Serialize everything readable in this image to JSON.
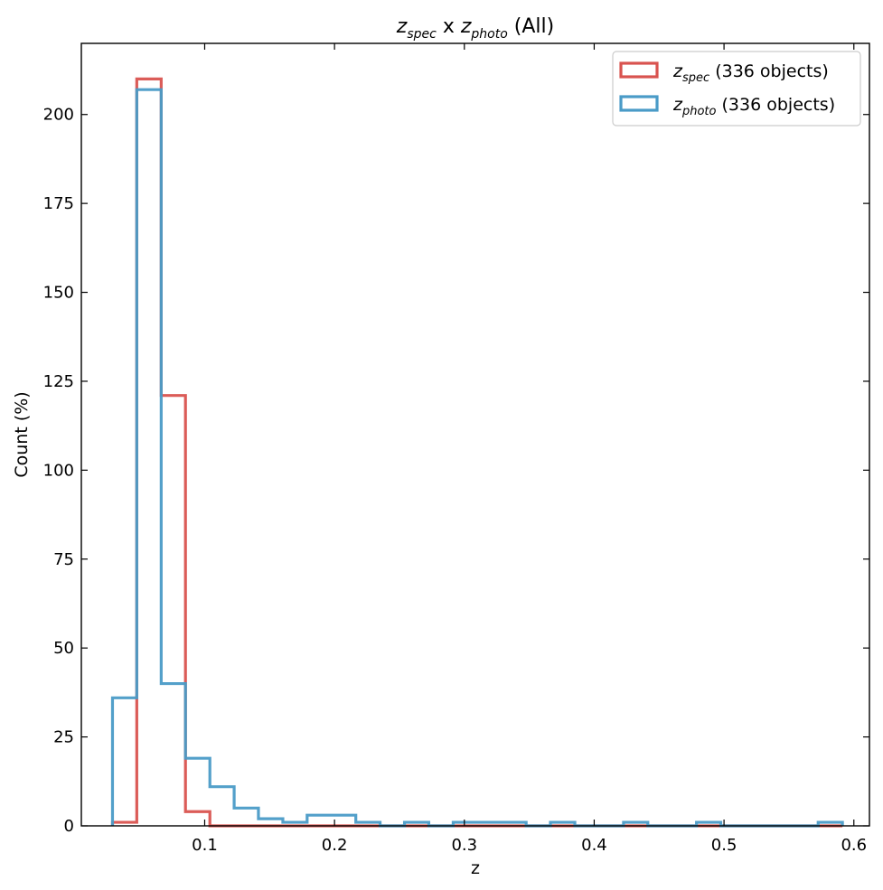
{
  "chart_data": {
    "type": "histogram",
    "title": {
      "a": "z",
      "a_sub": "spec",
      "mid": " x ",
      "b": "z",
      "b_sub": "photo",
      "tail": " (All)"
    },
    "xlabel": "z",
    "ylabel": "Count (%)",
    "xlim": [
      0.005,
      0.612
    ],
    "ylim": [
      0,
      220
    ],
    "xticks": [
      0.1,
      0.2,
      0.3,
      0.4,
      0.5,
      0.6
    ],
    "xtick_labels": [
      "0.1",
      "0.2",
      "0.3",
      "0.4",
      "0.5",
      "0.6"
    ],
    "yticks": [
      0,
      25,
      50,
      75,
      100,
      125,
      150,
      175,
      200
    ],
    "ytick_labels": [
      "0",
      "25",
      "50",
      "75",
      "100",
      "125",
      "150",
      "175",
      "200"
    ],
    "bin_edges": [
      0.029,
      0.0477,
      0.0665,
      0.0852,
      0.104,
      0.1227,
      0.1414,
      0.1602,
      0.1789,
      0.1977,
      0.2164,
      0.2351,
      0.2539,
      0.2726,
      0.2914,
      0.3101,
      0.3288,
      0.3476,
      0.3663,
      0.3851,
      0.4038,
      0.4226,
      0.4413,
      0.46,
      0.4788,
      0.4975,
      0.5163,
      0.535,
      0.5537,
      0.5725,
      0.5912
    ],
    "series": [
      {
        "name_main": "z",
        "name_sub": "spec",
        "name_tail": " (336 objects)",
        "color": "#d9534f",
        "counts": [
          1,
          210,
          121,
          4,
          0,
          0,
          0,
          0,
          0,
          0,
          0,
          0,
          0,
          0,
          0,
          0,
          0,
          0,
          0,
          0,
          0,
          0,
          0,
          0,
          0,
          0,
          0,
          0,
          0,
          0
        ]
      },
      {
        "name_main": "z",
        "name_sub": "photo",
        "name_tail": " (336 objects)",
        "color": "#4a9bc7",
        "counts": [
          36,
          207,
          40,
          19,
          11,
          5,
          2,
          1,
          3,
          3,
          1,
          0,
          1,
          0,
          1,
          1,
          1,
          0,
          1,
          0,
          0,
          1,
          0,
          0,
          1,
          0,
          0,
          0,
          0,
          1
        ]
      }
    ],
    "legend_position": "top-right",
    "grid": false
  }
}
